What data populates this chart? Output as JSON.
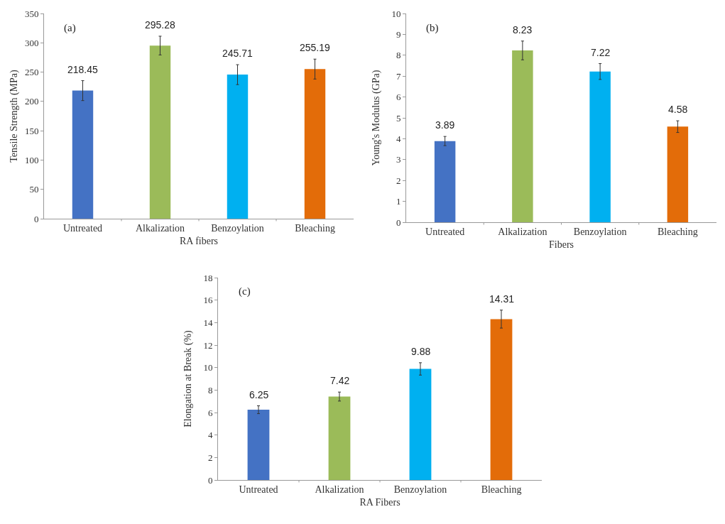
{
  "chart_data": [
    {
      "type": "bar",
      "ylabel": "Tensile Strength (MPa)",
      "xlabel": "RA fibers",
      "annotations": [
        "(a)"
      ],
      "categories": [
        "Untreated",
        "Alkalization",
        "Benzoylation",
        "Bleaching"
      ],
      "values": [
        218.45,
        295.28,
        245.71,
        255.19
      ],
      "colors": [
        "#4472c4",
        "#9bbb59",
        "#00b0f0",
        "#e36c09"
      ],
      "errors": [
        17,
        16,
        17,
        17
      ],
      "data_labels": true,
      "ylim": [
        0,
        350
      ],
      "yticks": [
        0,
        50,
        100,
        150,
        200,
        250,
        300,
        350
      ],
      "grid": false
    },
    {
      "type": "bar",
      "ylabel": "Young's Modulus (GPa)",
      "xlabel": "Fibers",
      "annotations": [
        "(b)"
      ],
      "categories": [
        "Untreated",
        "Alkalization",
        "Benzoylation",
        "Bleaching"
      ],
      "values": [
        3.89,
        8.23,
        7.22,
        4.58
      ],
      "colors": [
        "#4472c4",
        "#9bbb59",
        "#00b0f0",
        "#e36c09"
      ],
      "errors": [
        0.22,
        0.45,
        0.38,
        0.28
      ],
      "data_labels": true,
      "ylim": [
        0,
        10
      ],
      "yticks": [
        0,
        1,
        2,
        3,
        4,
        5,
        6,
        7,
        8,
        9,
        10
      ],
      "grid": false
    },
    {
      "type": "bar",
      "ylabel": "Elongation at Break (%)",
      "xlabel": "RA Fibers",
      "annotations": [
        "(c)"
      ],
      "categories": [
        "Untreated",
        "Alkalization",
        "Benzoylation",
        "Bleaching"
      ],
      "values": [
        6.25,
        7.42,
        9.88,
        14.31
      ],
      "colors": [
        "#4472c4",
        "#9bbb59",
        "#00b0f0",
        "#e36c09"
      ],
      "errors": [
        0.35,
        0.4,
        0.55,
        0.8
      ],
      "data_labels": true,
      "ylim": [
        0,
        18
      ],
      "yticks": [
        0,
        2,
        4,
        6,
        8,
        10,
        12,
        14,
        16,
        18
      ],
      "grid": false
    }
  ]
}
